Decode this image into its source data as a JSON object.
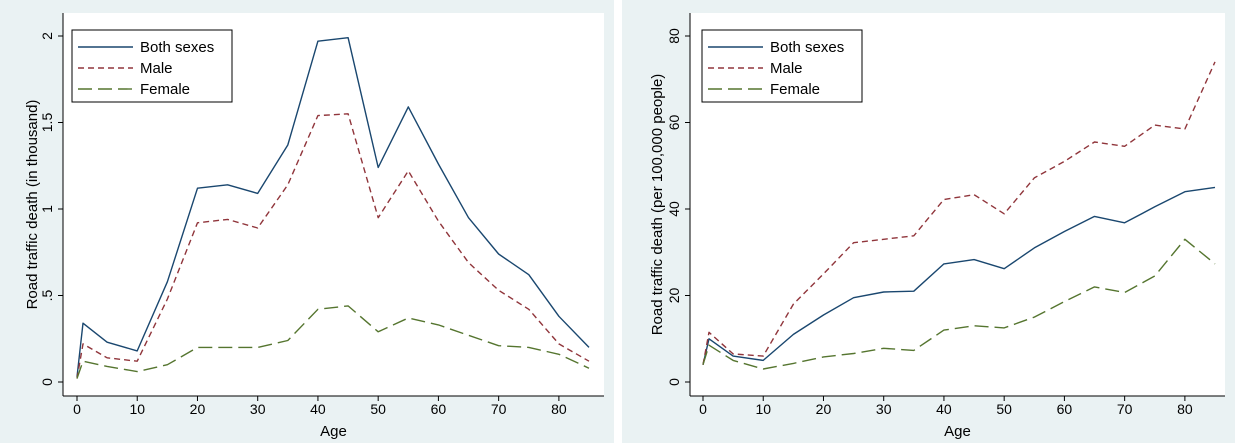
{
  "chart_data": [
    {
      "type": "line",
      "xlabel": "Age",
      "ylabel": "Road traffic death (in thousand)",
      "xlim": [
        0,
        85
      ],
      "ylim": [
        0,
        2
      ],
      "xticks": [
        0,
        10,
        20,
        30,
        40,
        50,
        60,
        70,
        80
      ],
      "yticks": [
        0,
        0.5,
        1,
        1.5,
        2
      ],
      "ytick_labels": [
        "0",
        ".5",
        "1",
        "1.5",
        "2"
      ],
      "legend_position": "top-left",
      "x": [
        0,
        1,
        5,
        10,
        15,
        20,
        25,
        30,
        35,
        40,
        45,
        50,
        55,
        60,
        65,
        70,
        75,
        80,
        85
      ],
      "series": [
        {
          "name": "Both sexes",
          "color": "#1a476f",
          "dash": "solid",
          "values": [
            0.03,
            0.34,
            0.23,
            0.18,
            0.58,
            1.12,
            1.14,
            1.09,
            1.37,
            1.97,
            1.99,
            1.24,
            1.59,
            1.26,
            0.95,
            0.74,
            0.62,
            0.38,
            0.2
          ]
        },
        {
          "name": "Male",
          "color": "#90353b",
          "dash": "short",
          "values": [
            0.02,
            0.22,
            0.14,
            0.12,
            0.48,
            0.92,
            0.94,
            0.89,
            1.14,
            1.54,
            1.55,
            0.95,
            1.22,
            0.93,
            0.69,
            0.53,
            0.42,
            0.22,
            0.12
          ]
        },
        {
          "name": "Female",
          "color": "#55752f",
          "dash": "long",
          "values": [
            0.02,
            0.12,
            0.09,
            0.06,
            0.1,
            0.2,
            0.2,
            0.2,
            0.24,
            0.42,
            0.44,
            0.29,
            0.37,
            0.33,
            0.27,
            0.21,
            0.2,
            0.16,
            0.08
          ]
        }
      ]
    },
    {
      "type": "line",
      "xlabel": "Age",
      "ylabel": "Road traffic death (per 100,000 people)",
      "xlim": [
        0,
        85
      ],
      "ylim": [
        0,
        80
      ],
      "xticks": [
        0,
        10,
        20,
        30,
        40,
        50,
        60,
        70,
        80
      ],
      "yticks": [
        0,
        20,
        40,
        60,
        80
      ],
      "ytick_labels": [
        "0",
        "20",
        "40",
        "60",
        "80"
      ],
      "legend_position": "top-left",
      "x": [
        0,
        1,
        5,
        10,
        15,
        20,
        25,
        30,
        35,
        40,
        45,
        50,
        55,
        60,
        65,
        70,
        75,
        80,
        85
      ],
      "series": [
        {
          "name": "Both sexes",
          "color": "#1a476f",
          "dash": "solid",
          "values": [
            4,
            10,
            6,
            5,
            11,
            15.5,
            19.5,
            20.8,
            21,
            27.3,
            28.3,
            26.2,
            31,
            34.8,
            38.3,
            36.8,
            40.5,
            44,
            45
          ]
        },
        {
          "name": "Male",
          "color": "#90353b",
          "dash": "short",
          "values": [
            4,
            11.5,
            6.5,
            6,
            18,
            25,
            32.2,
            33,
            33.8,
            42.2,
            43.3,
            38.9,
            47.2,
            51,
            55.5,
            54.5,
            59.4,
            58.5,
            74
          ]
        },
        {
          "name": "Female",
          "color": "#55752f",
          "dash": "long",
          "values": [
            4,
            8.5,
            5,
            3,
            4.3,
            5.8,
            6.6,
            7.8,
            7.3,
            12,
            13,
            12.5,
            15,
            18.6,
            22,
            20.7,
            24.5,
            33,
            27.3
          ]
        }
      ]
    }
  ]
}
